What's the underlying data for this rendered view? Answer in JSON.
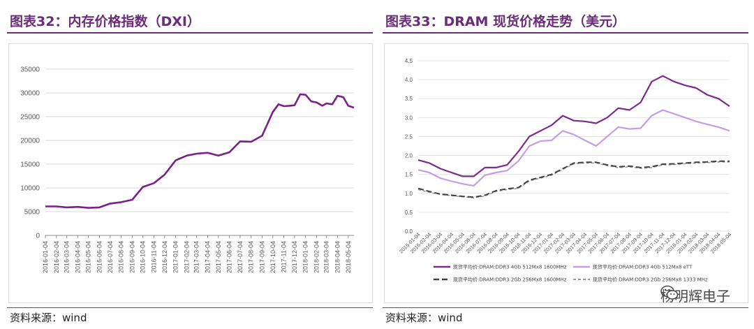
{
  "left": {
    "title": "图表32：内存价格指数（DXI）",
    "source": "资料来源：wind"
  },
  "right": {
    "title": "图表33：DRAM 现货价格走势（美元）",
    "source": "资料来源：wind"
  },
  "watermark": "杨明辉电子",
  "colors": {
    "title": "#6b2c7a",
    "dxi_line": "#7b1f8a",
    "ddr3_4gb_1600": "#7b2a8c",
    "ddr3_4gb_ett": "#c59ce8",
    "ddr3_2gb_1600": "#404040",
    "ddr3_2gb_1333": "#9a9a9a"
  },
  "chart_data": [
    {
      "type": "line",
      "title": "",
      "xlabel": "",
      "ylabel": "",
      "ylim": [
        0,
        35000
      ],
      "yticks": [
        0,
        5000,
        10000,
        15000,
        20000,
        25000,
        30000,
        35000
      ],
      "xticks": [
        "2016-01-04",
        "2016-02-04",
        "2016-03-04",
        "2016-04-04",
        "2016-05-04",
        "2016-06-04",
        "2016-07-04",
        "2016-08-04",
        "2016-09-04",
        "2016-10-04",
        "2016-11-04",
        "2016-12-04",
        "2017-01-04",
        "2017-02-04",
        "2017-03-04",
        "2017-04-04",
        "2017-05-04",
        "2017-06-04",
        "2017-07-04",
        "2017-08-04",
        "2017-09-04",
        "2017-10-04",
        "2017-11-04",
        "2017-12-04",
        "2018-01-04",
        "2018-02-04",
        "2018-03-04",
        "2018-04-04",
        "2018-05-04"
      ],
      "grid": "horizontal",
      "series": [
        {
          "x": [
            "2016-01-04",
            "2016-02-04",
            "2016-03-04",
            "2016-04-04",
            "2016-05-04",
            "2016-06-04",
            "2016-07-04",
            "2016-08-04",
            "2016-09-04",
            "2016-10-04",
            "2016-11-04",
            "2016-12-04",
            "2017-01-04",
            "2017-02-04",
            "2017-03-04",
            "2017-04-04",
            "2017-05-04",
            "2017-06-04",
            "2017-07-04",
            "2017-08-04",
            "2017-09-04",
            "2017-10-04",
            "2017-10-20",
            "2017-11-04",
            "2017-11-20",
            "2017-12-04",
            "2017-12-20",
            "2018-01-04",
            "2018-01-20",
            "2018-02-04",
            "2018-02-20",
            "2018-03-04",
            "2018-03-20",
            "2018-04-04",
            "2018-04-20",
            "2018-05-04",
            "2018-05-20"
          ],
          "values": [
            6100,
            6100,
            5900,
            6000,
            5800,
            5900,
            6700,
            7000,
            7500,
            10200,
            11000,
            12800,
            15800,
            16800,
            17200,
            17400,
            16800,
            17500,
            19800,
            19700,
            21000,
            26000,
            27600,
            27200,
            27300,
            27400,
            29700,
            29600,
            28200,
            28000,
            27300,
            27800,
            27600,
            29400,
            29100,
            27300,
            26900
          ]
        }
      ]
    },
    {
      "type": "line",
      "title": "",
      "xlabel": "",
      "ylabel": "",
      "ylim": [
        0,
        4.5
      ],
      "yticks": [
        "0.0",
        "0.5",
        "1.0",
        "1.5",
        "2.0",
        "2.5",
        "3.0",
        "3.5",
        "4.0",
        "4.5"
      ],
      "xticks": [
        "2016-01-04",
        "2016-02-04",
        "2016-03-04",
        "2016-04-04",
        "2016-05-04",
        "2016-06-04",
        "2016-07-04",
        "2016-08-04",
        "2016-09-04",
        "2016-10-04",
        "2016-11-04",
        "2016-12-04",
        "2017-01-04",
        "2017-02-04",
        "2017-03-04",
        "2017-04-04",
        "2017-05-04",
        "2017-06-04",
        "2017-07-04",
        "2017-08-04",
        "2017-09-04",
        "2017-10-04",
        "2017-11-04",
        "2017-12-04",
        "2018-01-04",
        "2018-02-04",
        "2018-03-04",
        "2018-04-04",
        "2018-05-04"
      ],
      "grid": "horizontal",
      "legend_position": "bottom",
      "series": [
        {
          "name": "现货平均价:DRAM:DDR3 4Gb 512Mx8 1600MHz",
          "style": "solid",
          "values": [
            1.88,
            1.8,
            1.65,
            1.55,
            1.45,
            1.45,
            1.68,
            1.68,
            1.75,
            2.1,
            2.5,
            2.65,
            2.8,
            3.05,
            2.92,
            2.9,
            2.85,
            3.0,
            3.25,
            3.2,
            3.4,
            3.95,
            4.1,
            3.95,
            3.85,
            3.78,
            3.6,
            3.5,
            3.3
          ]
        },
        {
          "name": "现货平均价:DRAM:DDR3 4Gb 512Mx8 eTT",
          "style": "solid",
          "values": [
            1.62,
            1.55,
            1.4,
            1.32,
            1.25,
            1.2,
            1.48,
            1.55,
            1.6,
            1.85,
            2.25,
            2.38,
            2.4,
            2.65,
            2.55,
            2.4,
            2.25,
            2.5,
            2.75,
            2.7,
            2.72,
            3.05,
            3.2,
            3.1,
            3.0,
            2.9,
            2.82,
            2.75,
            2.65
          ]
        },
        {
          "name": "现货平均价:DRAM:DDR3 2Gb 256Mx8 1600MHz",
          "style": "dashed",
          "values": [
            1.13,
            1.05,
            0.98,
            0.95,
            0.92,
            0.9,
            0.95,
            1.07,
            1.12,
            1.15,
            1.35,
            1.42,
            1.5,
            1.65,
            1.8,
            1.82,
            1.82,
            1.75,
            1.7,
            1.72,
            1.68,
            1.7,
            1.77,
            1.78,
            1.8,
            1.82,
            1.83,
            1.85,
            1.85
          ]
        },
        {
          "name": "现货平均价:DRAM:DDR3 2Gb 256Mx8 1333 MHz",
          "style": "dashed",
          "values": [
            1.1,
            1.03,
            0.97,
            0.94,
            0.91,
            0.88,
            0.93,
            1.05,
            1.1,
            1.13,
            1.33,
            1.4,
            1.48,
            1.63,
            1.78,
            1.8,
            1.8,
            1.73,
            1.68,
            1.7,
            1.66,
            1.68,
            1.75,
            1.76,
            1.78,
            1.8,
            1.81,
            1.83,
            1.83
          ]
        }
      ]
    }
  ]
}
